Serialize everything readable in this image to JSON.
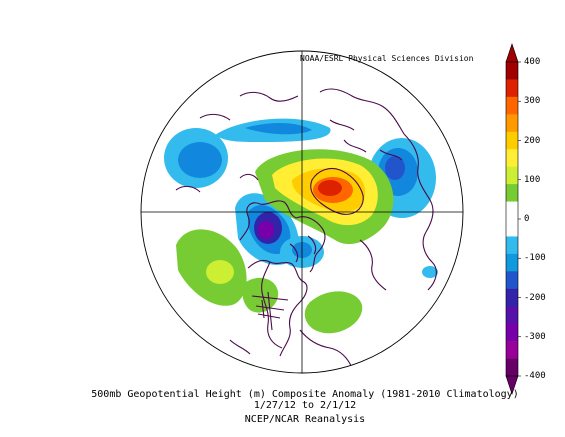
{
  "credit": "NOAA/ESRL Physical Sciences Division",
  "caption": {
    "line1": "500mb Geopotential Height (m) Composite Anomaly (1981-2010 Climatology)",
    "line2": "1/27/12  to 2/1/12",
    "line3": "NCEP/NCAR Reanalysis"
  },
  "colorbar": {
    "ticks": [
      "400",
      "300",
      "200",
      "100",
      "0",
      "-100",
      "-200",
      "-300",
      "-400"
    ],
    "colors": [
      "#a00000",
      "#dd2200",
      "#ff6600",
      "#ff9900",
      "#ffcc00",
      "#ffee33",
      "#ccee33",
      "#77cc33",
      "#ffffff",
      "#ffffff",
      "#33bbee",
      "#1199dd",
      "#2255cc",
      "#3322aa",
      "#5511aa",
      "#7700aa",
      "#990099",
      "#660066"
    ]
  },
  "icons": {
    "coastlines": "coastline-outline",
    "colorbar-arrow-top": "triangle-up",
    "colorbar-arrow-bottom": "triangle-down"
  }
}
